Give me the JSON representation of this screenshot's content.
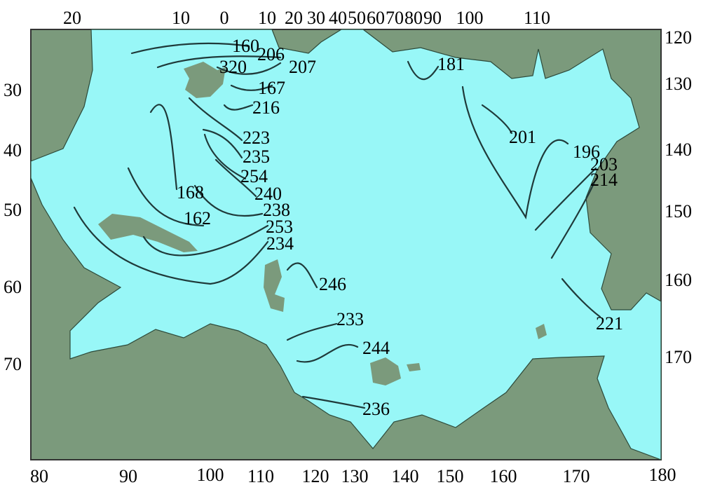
{
  "colors": {
    "land": "#7b9a7c",
    "water": "#98f7f7",
    "contour": "#1f3a3a"
  },
  "axes": {
    "top": [
      "20",
      "10",
      "0",
      "10",
      "20",
      "30",
      "40",
      "50",
      "60",
      "70",
      "80",
      "90",
      "100",
      "110"
    ],
    "left": [
      "30",
      "40",
      "50",
      "60",
      "70"
    ],
    "right": [
      "120",
      "130",
      "140",
      "150",
      "160",
      "170"
    ],
    "bottom": [
      "80",
      "90",
      "100",
      "110",
      "120",
      "130",
      "140",
      "150",
      "160",
      "170",
      "180"
    ]
  },
  "contour_labels": [
    "160",
    "206",
    "320",
    "207",
    "167",
    "216",
    "181",
    "223",
    "235",
    "254",
    "240",
    "168",
    "162",
    "238",
    "253",
    "234",
    "201",
    "196",
    "203",
    "214",
    "246",
    "233",
    "244",
    "236",
    "221"
  ]
}
